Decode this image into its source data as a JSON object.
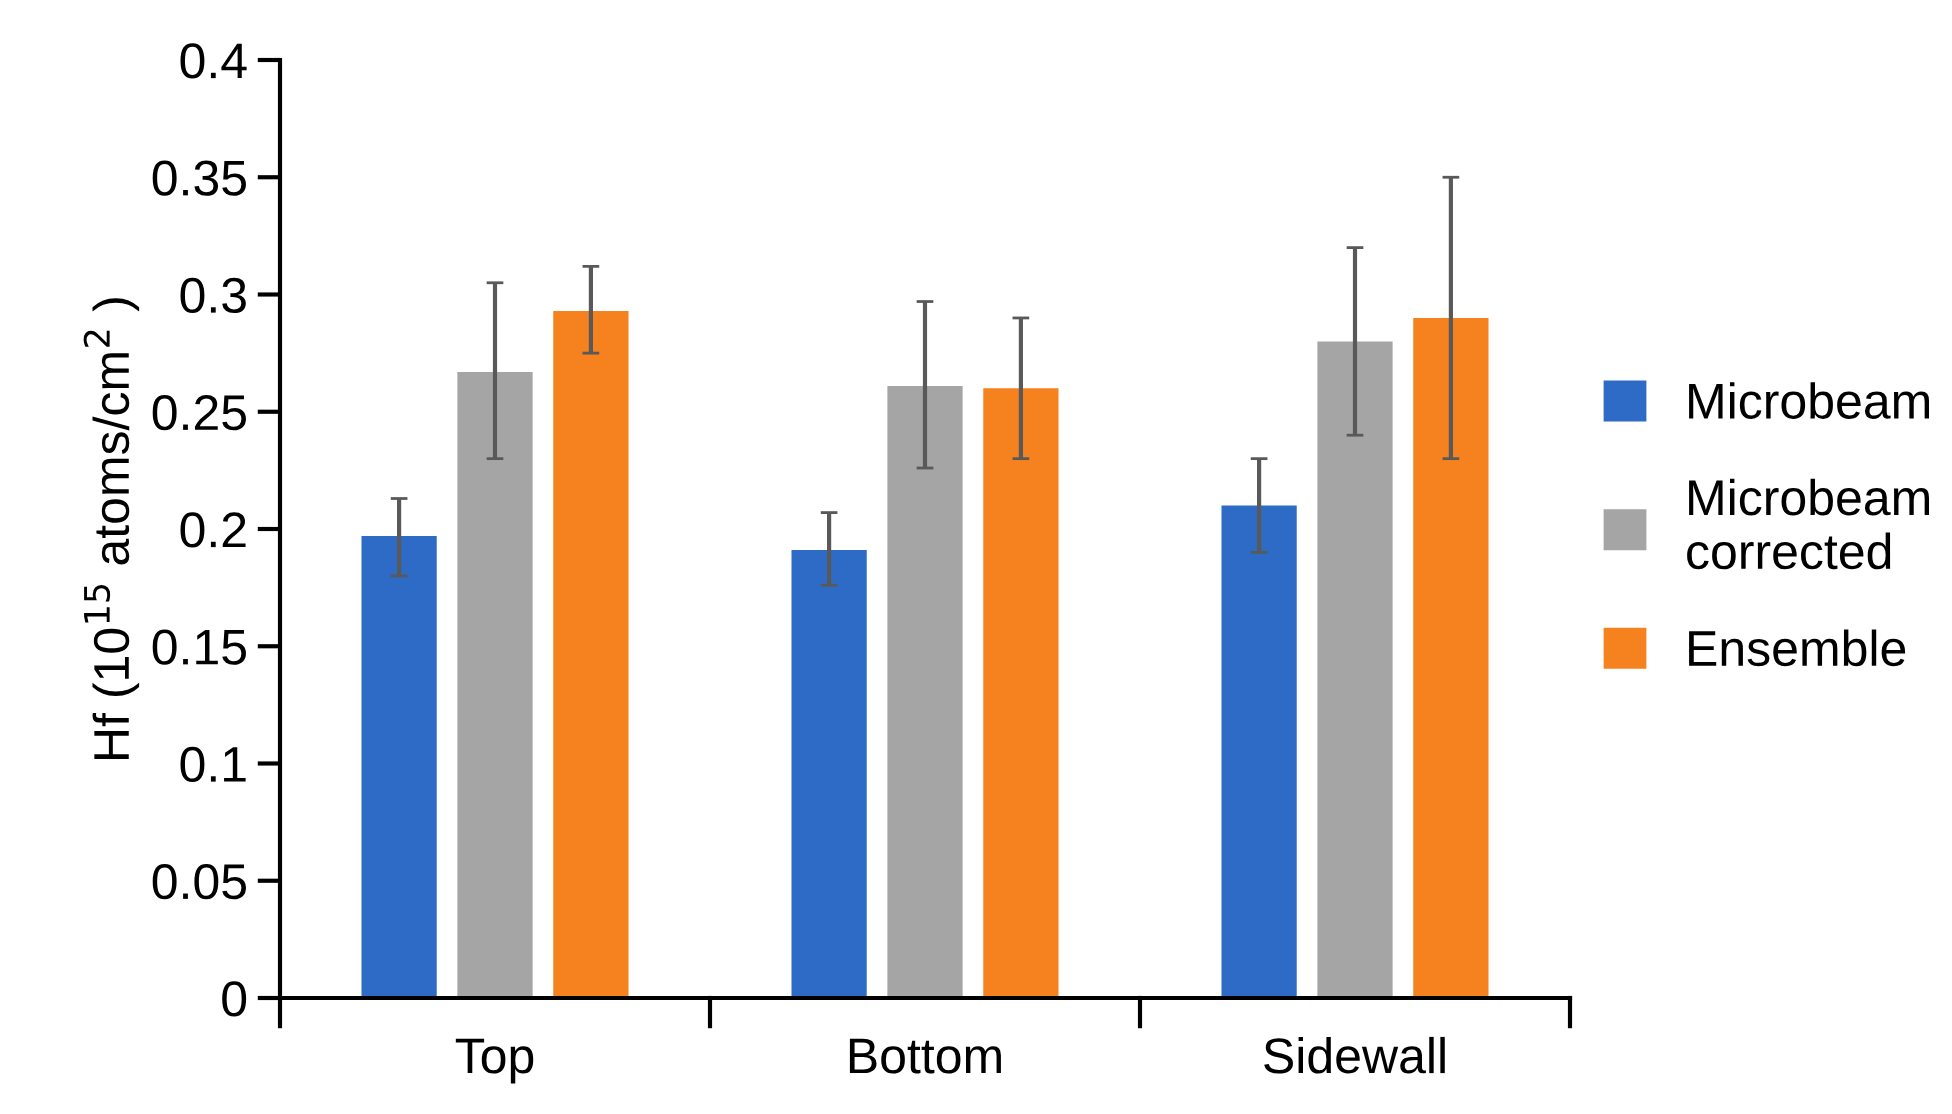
{
  "chart_data": {
    "type": "bar",
    "ylabel": "Hf (10$^{15}$ atoms/cm$^{2}$ )",
    "categories": [
      "Top",
      "Bottom",
      "Sidewall"
    ],
    "series": [
      {
        "name": "Microbeam",
        "color": "#2e6bc6",
        "values": [
          0.197,
          0.191,
          0.21
        ],
        "errors": [
          [
            0.18,
            0.213
          ],
          [
            0.176,
            0.207
          ],
          [
            0.19,
            0.23
          ]
        ]
      },
      {
        "name": "Microbeam corrected",
        "color": "#a5a5a5",
        "values": [
          0.267,
          0.261,
          0.28
        ],
        "errors": [
          [
            0.23,
            0.305
          ],
          [
            0.226,
            0.297
          ],
          [
            0.24,
            0.32
          ]
        ]
      },
      {
        "name": "Ensemble",
        "color": "#f5821f",
        "values": [
          0.293,
          0.26,
          0.29
        ],
        "errors": [
          [
            0.275,
            0.312
          ],
          [
            0.23,
            0.29
          ],
          [
            0.23,
            0.35
          ]
        ]
      }
    ],
    "ylim": [
      0,
      0.4
    ],
    "yticks": [
      0,
      0.05,
      0.1,
      0.15,
      0.2,
      0.25,
      0.3,
      0.35,
      0.4
    ],
    "grid": false,
    "legend": "right"
  }
}
